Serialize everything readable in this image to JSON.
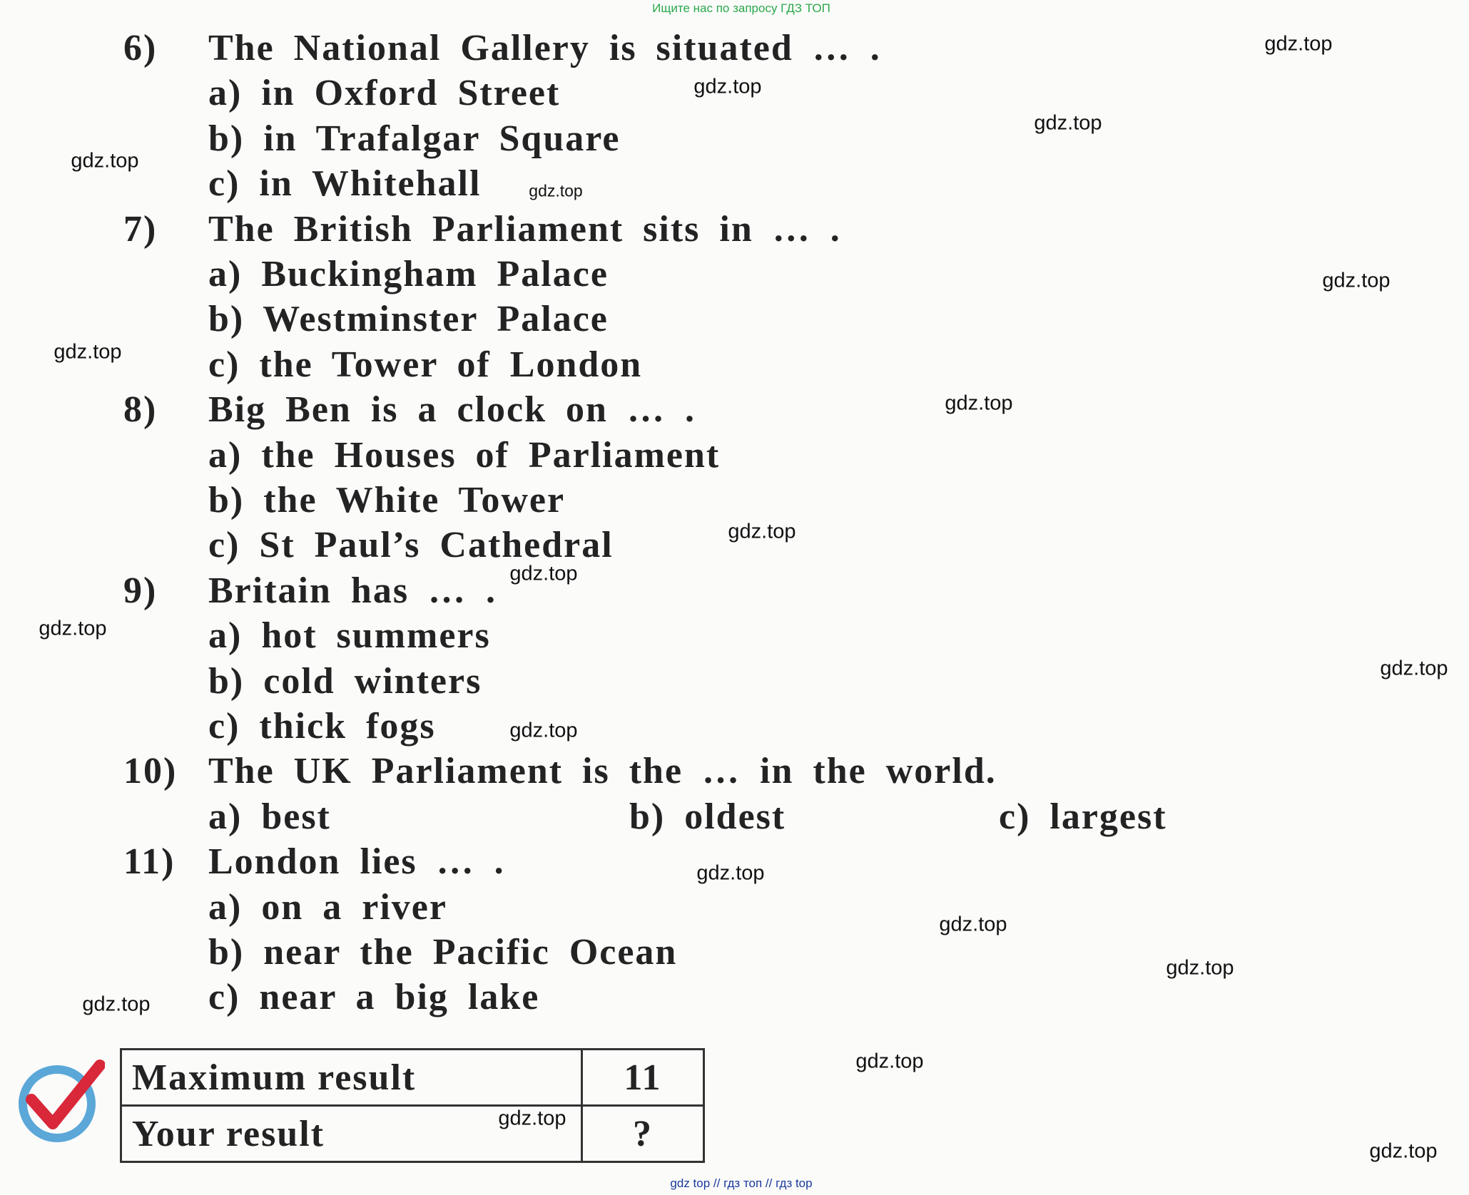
{
  "header": {
    "note": "Ищите нас по запросу ГДЗ ТОП"
  },
  "questions": [
    {
      "number": "6)",
      "text": "The National Gallery is situated … .",
      "options": [
        "a) in Oxford Street",
        "b) in Trafalgar Square",
        "c) in Whitehall"
      ]
    },
    {
      "number": "7)",
      "text": "The British Parliament sits in … .",
      "options": [
        "a) Buckingham Palace",
        "b) Westminster Palace",
        "c) the Tower of London"
      ]
    },
    {
      "number": "8)",
      "text": "Big Ben is a clock on … .",
      "options": [
        "a) the Houses of Parliament",
        "b) the White Tower",
        "c) St Paul’s Cathedral"
      ]
    },
    {
      "number": "9)",
      "text": "Britain has … .",
      "options": [
        "a) hot summers",
        "b) cold winters",
        "c) thick fogs"
      ]
    },
    {
      "number": "10)",
      "text": "The UK Parliament is the … in the world.",
      "options": [
        "a) best",
        "b) oldest",
        "c) largest"
      ]
    },
    {
      "number": "11)",
      "text": "London lies … .",
      "options": [
        "a) on a river",
        "b) near the Pacific Ocean",
        "c) near a big lake"
      ]
    }
  ],
  "result_table": {
    "rows": [
      [
        "Maximum result",
        "11"
      ],
      [
        "Your result",
        "?"
      ]
    ]
  },
  "watermarks": [
    "gdz.top",
    "gdz.top",
    "gdz.top",
    "gdz.top",
    "gdz.top",
    "gdz.top",
    "gdz.top",
    "gdz.top",
    "gdz.top",
    "gdz.top",
    "gdz.top",
    "gdz.top",
    "gdz.top",
    "gdz.top",
    "gdz.top",
    "gdz.top",
    "gdz.top",
    "gdz.top",
    "gdz.top",
    "gdz.top"
  ],
  "footer": {
    "note": "gdz top // гдз топ // гдз top"
  }
}
